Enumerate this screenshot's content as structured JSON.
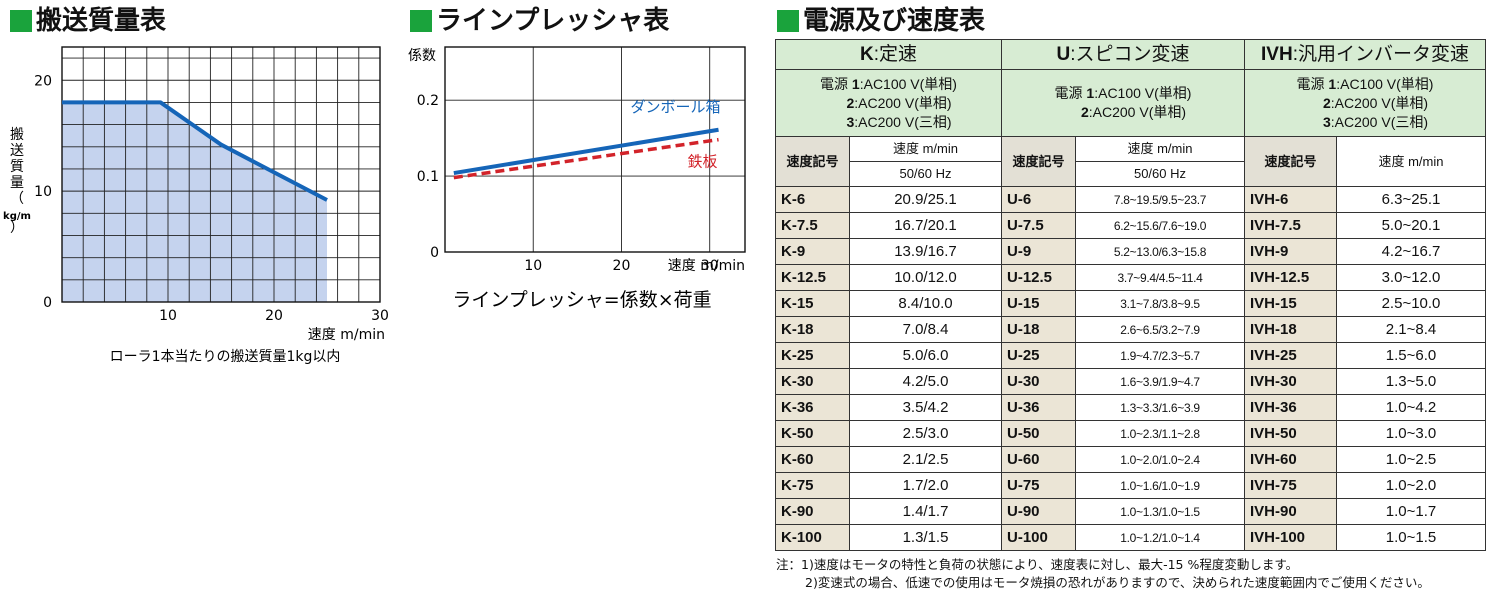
{
  "headings": {
    "transport": "搬送質量表",
    "pressure": "ラインプレッシャ表",
    "speed": "電源及び速度表"
  },
  "colors": {
    "heading_square": "#1aa33c",
    "area_fill": "#c5d3ee",
    "line_blue": "#1565b8",
    "line_red": "#d2232a",
    "table_group_bg": "#d7ecd3",
    "table_code_bg": "#ebe5d6"
  },
  "chart_data": [
    {
      "type": "area",
      "title": "",
      "xlabel": "速度 m/min",
      "ylabel_chars": [
        "搬",
        "送",
        "質",
        "量",
        "（",
        "kg/m",
        "）"
      ],
      "xlim": [
        0,
        30
      ],
      "ylim": [
        0,
        23
      ],
      "x_ticks": [
        "10",
        "20",
        "30"
      ],
      "y_ticks": [
        "0",
        "10",
        "20"
      ],
      "grid": true,
      "points": [
        [
          0,
          18
        ],
        [
          9.3,
          18
        ],
        [
          15,
          14.2
        ],
        [
          25,
          9.2
        ]
      ],
      "fill_until_x": 25,
      "caption": "ローラ1本当たりの搬送質量1kg以内"
    },
    {
      "type": "line",
      "title": "",
      "xlabel": "速度 m/min",
      "ylabel": "係数",
      "xlim": [
        0,
        34
      ],
      "ylim": [
        0,
        0.27
      ],
      "x_ticks": [
        "10",
        "20",
        "30"
      ],
      "y_ticks": [
        "0",
        "0.1",
        "0.2"
      ],
      "grid": true,
      "series": [
        {
          "name": "ダンボール箱",
          "x": [
            1,
            31
          ],
          "y": [
            0.104,
            0.161
          ],
          "style": "solid"
        },
        {
          "name": "鉄板",
          "x": [
            1,
            31
          ],
          "y": [
            0.098,
            0.148
          ],
          "style": "dashed"
        }
      ],
      "formula": "ラインプレッシャ=係数×荷重"
    },
    {
      "type": "table",
      "groups": [
        {
          "code": "K",
          "name": ":定速",
          "power_prefix": "電源",
          "power": [
            {
              "num": "1",
              "text": ":AC100 V(単相)"
            },
            {
              "num": "2",
              "text": ":AC200 V(単相)"
            },
            {
              "num": "3",
              "text": ":AC200 V(三相)"
            }
          ]
        },
        {
          "code": "U",
          "name": ":スピコン変速",
          "power_prefix": "電源",
          "power": [
            {
              "num": "1",
              "text": ":AC100 V(単相)"
            },
            {
              "num": "2",
              "text": ":AC200 V(単相)"
            }
          ]
        },
        {
          "code": "IVH",
          "name": ":汎用インバータ変速",
          "power_prefix": "電源",
          "power": [
            {
              "num": "1",
              "text": ":AC100 V(単相)"
            },
            {
              "num": "2",
              "text": ":AC200 V(単相)"
            },
            {
              "num": "3",
              "text": ":AC200 V(三相)"
            }
          ]
        }
      ],
      "headers": {
        "code": "速度記号",
        "speed": "速度 m/min",
        "hz": "50/60 Hz"
      },
      "rows": [
        [
          "K-6",
          "20.9/25.1",
          "U-6",
          "7.8~19.5/9.5~23.7",
          "IVH-6",
          "6.3~25.1"
        ],
        [
          "K-7.5",
          "16.7/20.1",
          "U-7.5",
          "6.2~15.6/7.6~19.0",
          "IVH-7.5",
          "5.0~20.1"
        ],
        [
          "K-9",
          "13.9/16.7",
          "U-9",
          "5.2~13.0/6.3~15.8",
          "IVH-9",
          "4.2~16.7"
        ],
        [
          "K-12.5",
          "10.0/12.0",
          "U-12.5",
          "3.7~9.4/4.5~11.4",
          "IVH-12.5",
          "3.0~12.0"
        ],
        [
          "K-15",
          "8.4/10.0",
          "U-15",
          "3.1~7.8/3.8~9.5",
          "IVH-15",
          "2.5~10.0"
        ],
        [
          "K-18",
          "7.0/8.4",
          "U-18",
          "2.6~6.5/3.2~7.9",
          "IVH-18",
          "2.1~8.4"
        ],
        [
          "K-25",
          "5.0/6.0",
          "U-25",
          "1.9~4.7/2.3~5.7",
          "IVH-25",
          "1.5~6.0"
        ],
        [
          "K-30",
          "4.2/5.0",
          "U-30",
          "1.6~3.9/1.9~4.7",
          "IVH-30",
          "1.3~5.0"
        ],
        [
          "K-36",
          "3.5/4.2",
          "U-36",
          "1.3~3.3/1.6~3.9",
          "IVH-36",
          "1.0~4.2"
        ],
        [
          "K-50",
          "2.5/3.0",
          "U-50",
          "1.0~2.3/1.1~2.8",
          "IVH-50",
          "1.0~3.0"
        ],
        [
          "K-60",
          "2.1/2.5",
          "U-60",
          "1.0~2.0/1.0~2.4",
          "IVH-60",
          "1.0~2.5"
        ],
        [
          "K-75",
          "1.7/2.0",
          "U-75",
          "1.0~1.6/1.0~1.9",
          "IVH-75",
          "1.0~2.0"
        ],
        [
          "K-90",
          "1.4/1.7",
          "U-90",
          "1.0~1.3/1.0~1.5",
          "IVH-90",
          "1.0~1.7"
        ],
        [
          "K-100",
          "1.3/1.5",
          "U-100",
          "1.0~1.2/1.0~1.4",
          "IVH-100",
          "1.0~1.5"
        ]
      ]
    }
  ],
  "notes": [
    "注：1)速度はモータの特性と負荷の状態により、速度表に対し、最大-15 %程度変動します。",
    "2)変速式の場合、低速での使用はモータ焼損の恐れがありますので、決められた速度範囲内でご使用ください。"
  ]
}
